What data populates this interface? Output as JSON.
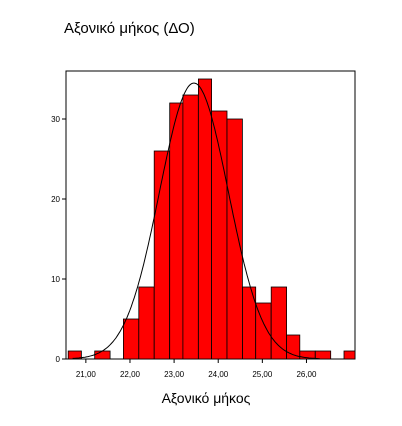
{
  "chart_data": {
    "type": "bar",
    "title": "Αξονικό μήκος (ΔΟ)",
    "xlabel": "Αξονικό μήκος",
    "ylabel": "",
    "bar_color": "#ff0000",
    "curve_color": "#000000",
    "xlim": [
      20.55,
      27.1
    ],
    "ylim": [
      0,
      36
    ],
    "grid": false,
    "xticks": [
      {
        "value": 21.0,
        "label": "21,00"
      },
      {
        "value": 22.0,
        "label": "22,00"
      },
      {
        "value": 23.0,
        "label": "23,00"
      },
      {
        "value": 24.0,
        "label": "24,00"
      },
      {
        "value": 25.0,
        "label": "25,00"
      },
      {
        "value": 26.0,
        "label": "26,00"
      }
    ],
    "yticks": [
      {
        "value": 0,
        "label": "0"
      },
      {
        "value": 10,
        "label": "10"
      },
      {
        "value": 20,
        "label": "20"
      },
      {
        "value": 30,
        "label": "30"
      }
    ],
    "bins": [
      {
        "x0": 20.6,
        "x1": 20.9,
        "count": 1
      },
      {
        "x0": 20.9,
        "x1": 21.2,
        "count": 0
      },
      {
        "x0": 21.2,
        "x1": 21.55,
        "count": 1
      },
      {
        "x0": 21.55,
        "x1": 21.85,
        "count": 0
      },
      {
        "x0": 21.85,
        "x1": 22.2,
        "count": 5
      },
      {
        "x0": 22.2,
        "x1": 22.55,
        "count": 9
      },
      {
        "x0": 22.55,
        "x1": 22.9,
        "count": 26
      },
      {
        "x0": 22.9,
        "x1": 23.2,
        "count": 32
      },
      {
        "x0": 23.2,
        "x1": 23.55,
        "count": 33
      },
      {
        "x0": 23.55,
        "x1": 23.85,
        "count": 35
      },
      {
        "x0": 23.85,
        "x1": 24.2,
        "count": 31
      },
      {
        "x0": 24.2,
        "x1": 24.55,
        "count": 30
      },
      {
        "x0": 24.55,
        "x1": 24.85,
        "count": 9
      },
      {
        "x0": 24.85,
        "x1": 25.2,
        "count": 7
      },
      {
        "x0": 25.2,
        "x1": 25.55,
        "count": 9
      },
      {
        "x0": 25.55,
        "x1": 25.85,
        "count": 3
      },
      {
        "x0": 25.85,
        "x1": 26.2,
        "count": 1
      },
      {
        "x0": 26.2,
        "x1": 26.55,
        "count": 1
      },
      {
        "x0": 26.55,
        "x1": 26.85,
        "count": 0
      },
      {
        "x0": 26.85,
        "x1": 27.1,
        "count": 1
      }
    ],
    "normal_curve": {
      "mean": 23.45,
      "sd": 0.78,
      "peak": 34.5
    }
  }
}
